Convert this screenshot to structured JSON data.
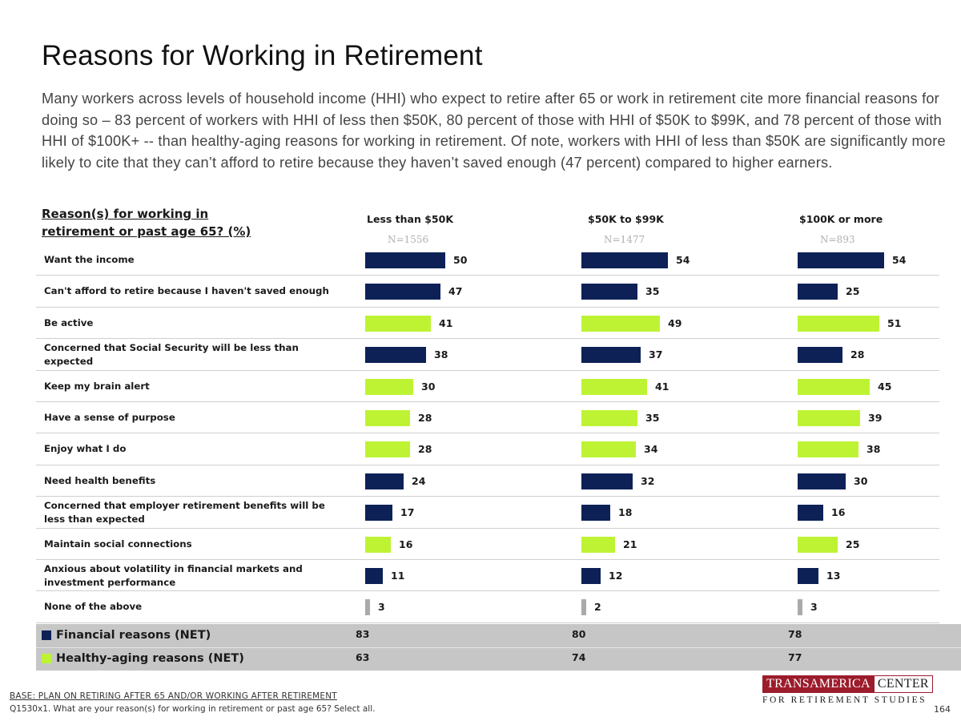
{
  "title": "Reasons for Working in Retirement",
  "subtitle": "Many workers across levels of household income (HHI) who expect to retire after 65 or work in retirement cite more financial reasons for doing so – 83 percent of workers with HHI of less then $50K, 80 percent of those with HHI of $50K to $99K, and 78 percent of those with HHI of $100K+ -- than healthy-aging reasons for working in retirement. Of note, workers with HHI of less than $50K are significantly more likely to cite that they can’t afford to retire because they haven’t saved enough (47 percent) compared to higher earners.",
  "question_label": "Reason(s) for working in retirement or past age 65? (%)",
  "colors": {
    "financial": "#0d2157",
    "healthy_aging": "#bef334",
    "none": "#aaaaaa"
  },
  "chart_data": {
    "type": "bar",
    "orientation": "horizontal",
    "xlim": [
      0,
      60
    ],
    "columns": [
      {
        "name": "Less than $50K",
        "n": "N=1556"
      },
      {
        "name": "$50K to $99K",
        "n": "N=1477"
      },
      {
        "name": "$100K or more",
        "n": "N=893"
      }
    ],
    "rows": [
      {
        "label": "Want the income",
        "category": "financial",
        "values": [
          50,
          54,
          54
        ]
      },
      {
        "label": "Can't afford to retire because I haven't saved enough",
        "category": "financial",
        "values": [
          47,
          35,
          25
        ]
      },
      {
        "label": "Be active",
        "category": "healthy_aging",
        "values": [
          41,
          49,
          51
        ]
      },
      {
        "label": "Concerned that Social Security will be less than expected",
        "category": "financial",
        "values": [
          38,
          37,
          28
        ]
      },
      {
        "label": "Keep my brain alert",
        "category": "healthy_aging",
        "values": [
          30,
          41,
          45
        ]
      },
      {
        "label": "Have a sense of purpose",
        "category": "healthy_aging",
        "values": [
          28,
          35,
          39
        ]
      },
      {
        "label": "Enjoy what I do",
        "category": "healthy_aging",
        "values": [
          28,
          34,
          38
        ]
      },
      {
        "label": "Need health benefits",
        "category": "financial",
        "values": [
          24,
          32,
          30
        ]
      },
      {
        "label": "Concerned that employer retirement benefits will be less than expected",
        "category": "financial",
        "values": [
          17,
          18,
          16
        ]
      },
      {
        "label": "Maintain social connections",
        "category": "healthy_aging",
        "values": [
          16,
          21,
          25
        ]
      },
      {
        "label": "Anxious about volatility in financial markets and investment performance",
        "category": "financial",
        "values": [
          11,
          12,
          13
        ]
      },
      {
        "label": "None of the above",
        "category": "none",
        "values": [
          3,
          2,
          3
        ]
      }
    ],
    "nets": [
      {
        "label": "Financial reasons (NET)",
        "category": "financial",
        "values": [
          83,
          80,
          78
        ]
      },
      {
        "label": "Healthy-aging reasons (NET)",
        "category": "healthy_aging",
        "values": [
          63,
          74,
          77
        ]
      }
    ]
  },
  "footer": {
    "base": "BASE:  PLAN ON RETIRING AFTER 65 AND/OR WORKING AFTER RETIREMENT",
    "question": "Q1530x1. What are your reason(s) for working in retirement or past age 65? Select all.",
    "logo_left": "TRANSAMERICA",
    "logo_right": "CENTER",
    "logo_bottom": "FOR RETIREMENT STUDIES",
    "page_number": "164"
  }
}
